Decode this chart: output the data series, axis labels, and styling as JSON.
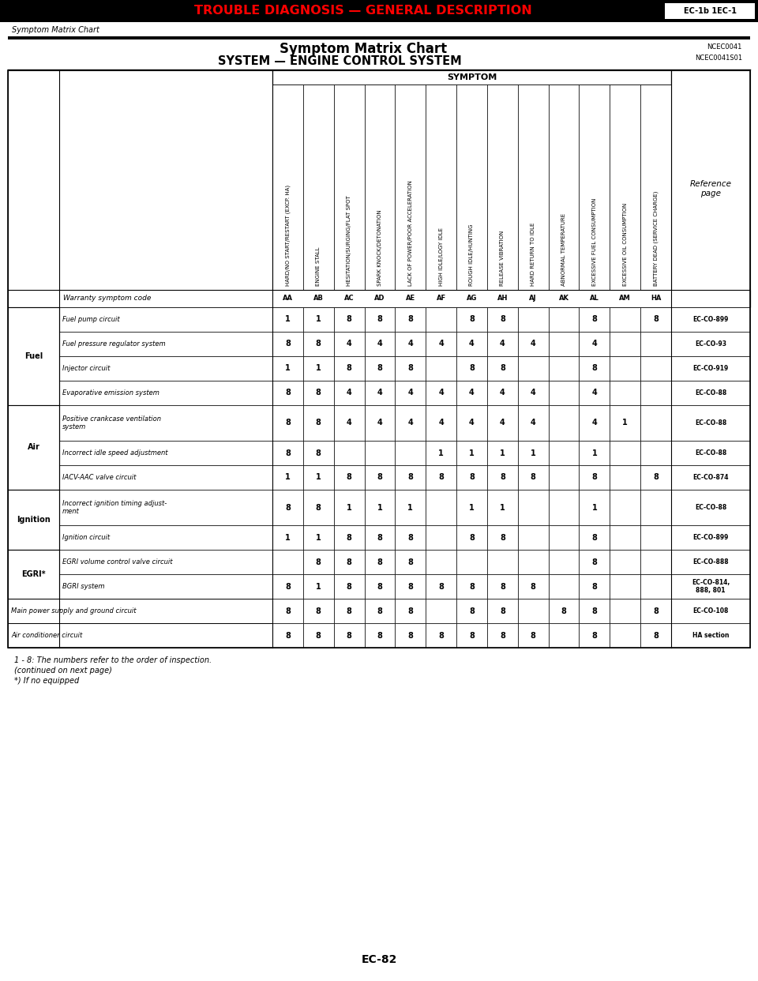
{
  "title_red": "TROUBLE DIAGNOSIS — GENERAL DESCRIPTION",
  "title_box_text": "EC-1b 1EC-1",
  "section_label": "Symptom Matrix Chart",
  "chart_title_1": "Symptom Matrix Chart",
  "chart_title_2": "SYSTEM — ENGINE CONTROL SYSTEM",
  "ref_code1": "NCEC0041",
  "ref_code2": "NCEC0041S01",
  "symptom_header": "SYMPTOM",
  "symptom_columns": [
    "HARD/NO START/RESTART (EXCP. HA)",
    "ENGINE STALL",
    "HESITATION/SURGING/FLAT SPOT",
    "SPARK KNOCK/DETONATION",
    "LACK OF POWER/POOR ACCELERATION",
    "HIGH IDLE/LOGY IDLE",
    "ROUGH IDLE/HUNTING",
    "RELEASE VIBRATION",
    "HARD RETURN TO IDLE",
    "ABNORMAL TEMPERATURE",
    "EXCESSIVE FUEL CONSUMPTION",
    "EXCESSIVE OIL CONSUMPTION",
    "BATTERY DEAD (SERVICE CHARGE)"
  ],
  "symptom_codes": [
    "AA",
    "AB",
    "AC",
    "AD",
    "AE",
    "AF",
    "AG",
    "AH",
    "AJ",
    "AK",
    "AL",
    "AM",
    "HA"
  ],
  "ref_page_label": "Reference\npage",
  "categories": [
    {
      "name": "Fuel",
      "rows": [
        {
          "label": "Fuel pump circuit",
          "values": [
            "1",
            "1",
            "8",
            "8",
            "8",
            "",
            "8",
            "8",
            "",
            "",
            "8",
            "",
            "8"
          ],
          "ref": "EC-CO-899"
        },
        {
          "label": "Fuel pressure regulator system",
          "values": [
            "8",
            "8",
            "4",
            "4",
            "4",
            "4",
            "4",
            "4",
            "4",
            "",
            "4",
            "",
            ""
          ],
          "ref": "EC-CO-93"
        },
        {
          "label": "Injector circuit",
          "values": [
            "1",
            "1",
            "8",
            "8",
            "8",
            "",
            "8",
            "8",
            "",
            "",
            "8",
            "",
            ""
          ],
          "ref": "EC-CO-919"
        },
        {
          "label": "Evaporative emission system",
          "values": [
            "8",
            "8",
            "4",
            "4",
            "4",
            "4",
            "4",
            "4",
            "4",
            "",
            "4",
            "",
            ""
          ],
          "ref": "EC-CO-88"
        }
      ]
    },
    {
      "name": "Air",
      "rows": [
        {
          "label": "Positive crankcase ventilation\nsystem",
          "values": [
            "8",
            "8",
            "4",
            "4",
            "4",
            "4",
            "4",
            "4",
            "4",
            "",
            "4",
            "1",
            ""
          ],
          "ref": "EC-CO-88"
        },
        {
          "label": "Incorrect idle speed adjustment",
          "values": [
            "8",
            "8",
            "",
            "",
            "",
            "1",
            "1",
            "1",
            "1",
            "",
            "1",
            "",
            ""
          ],
          "ref": "EC-CO-88"
        },
        {
          "label": "IACV-AAC valve circuit",
          "values": [
            "1",
            "1",
            "8",
            "8",
            "8",
            "8",
            "8",
            "8",
            "8",
            "",
            "8",
            "",
            "8"
          ],
          "ref": "EC-CO-874"
        }
      ]
    },
    {
      "name": "Ignition",
      "rows": [
        {
          "label": "Incorrect ignition timing adjust-\nment",
          "values": [
            "8",
            "8",
            "1",
            "1",
            "1",
            "",
            "1",
            "1",
            "",
            "",
            "1",
            "",
            ""
          ],
          "ref": "EC-CO-88"
        },
        {
          "label": "Ignition circuit",
          "values": [
            "1",
            "1",
            "8",
            "8",
            "8",
            "",
            "8",
            "8",
            "",
            "",
            "8",
            "",
            ""
          ],
          "ref": "EC-CO-899"
        }
      ]
    },
    {
      "name": "EGRI*",
      "rows": [
        {
          "label": "EGRI volume control valve circuit",
          "values": [
            "",
            "8",
            "8",
            "8",
            "8",
            "",
            "",
            "",
            "",
            "",
            "8",
            "",
            ""
          ],
          "ref": "EC-CO-888"
        },
        {
          "label": "BGRI system",
          "values": [
            "8",
            "1",
            "8",
            "8",
            "8",
            "8",
            "8",
            "8",
            "8",
            "",
            "8",
            "",
            ""
          ],
          "ref": "EC-CO-814,\n888, 801"
        }
      ]
    },
    {
      "name": "Main power supply and ground circuit",
      "rows": [
        {
          "label": "",
          "values": [
            "8",
            "8",
            "8",
            "8",
            "8",
            "",
            "8",
            "8",
            "",
            "8",
            "8",
            "",
            "8"
          ],
          "ref": "EC-CO-108"
        }
      ]
    },
    {
      "name": "Air conditioner circuit",
      "rows": [
        {
          "label": "",
          "values": [
            "8",
            "8",
            "8",
            "8",
            "8",
            "8",
            "8",
            "8",
            "8",
            "",
            "8",
            "",
            "8"
          ],
          "ref": "HA section"
        }
      ]
    }
  ],
  "footer_notes": [
    "1 - 8: The numbers refer to the order of inspection.",
    "(continued on next page)",
    "*) If no equipped"
  ],
  "page_number": "EC-82"
}
